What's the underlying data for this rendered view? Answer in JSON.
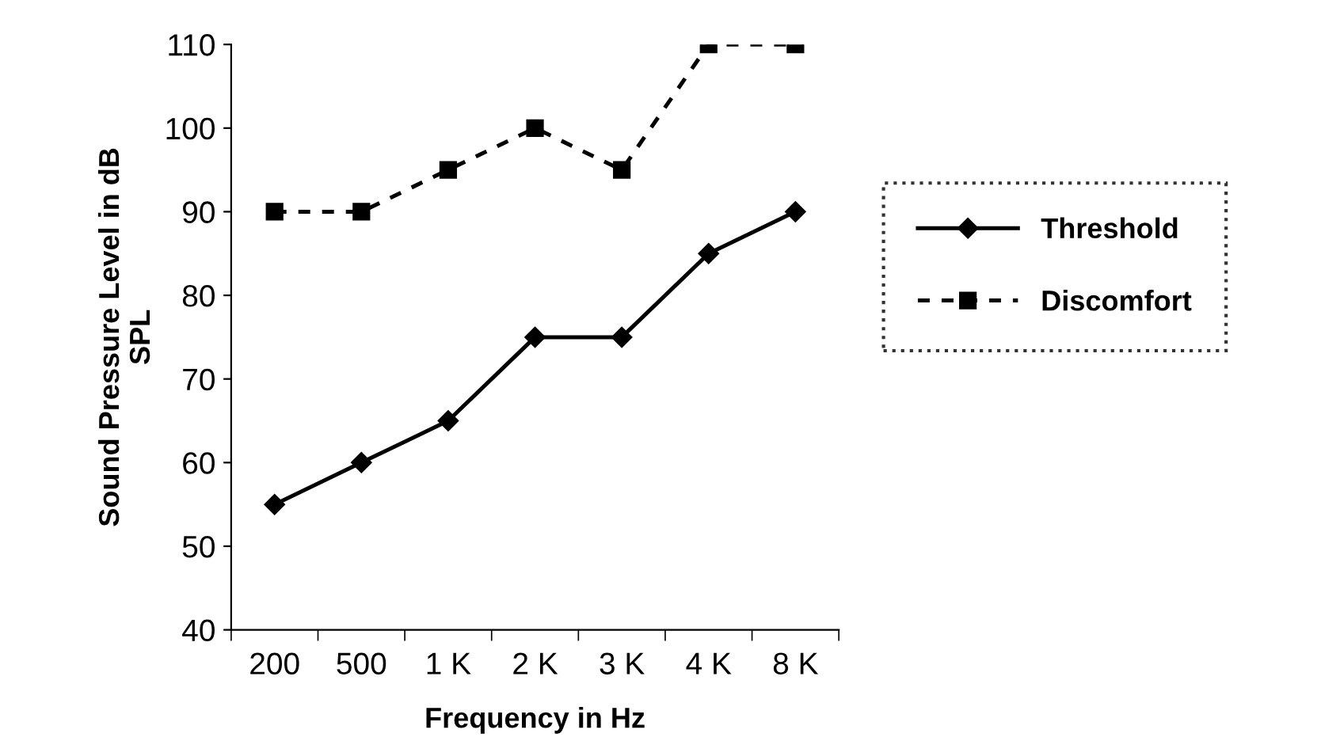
{
  "chart_data": {
    "type": "line",
    "xlabel": "Frequency in Hz",
    "ylabel": "Sound Pressure Level in dB\nSPL",
    "categories": [
      "200",
      "500",
      "1 K",
      "2 K",
      "3 K",
      "4 K",
      "8 K"
    ],
    "series": [
      {
        "name": "Threshold",
        "color": "#000000",
        "marker": "diamond",
        "line_style": "solid",
        "values": [
          55,
          60,
          65,
          75,
          75,
          85,
          90
        ]
      },
      {
        "name": "Discomfort",
        "color": "#000000",
        "marker": "square",
        "line_style": "dashed",
        "values": [
          90,
          90,
          95,
          100,
          95,
          110,
          110
        ]
      }
    ],
    "ylim": [
      40,
      110
    ],
    "yticks": [
      40,
      50,
      60,
      70,
      80,
      90,
      100,
      110
    ],
    "grid": false,
    "legend": "right"
  }
}
